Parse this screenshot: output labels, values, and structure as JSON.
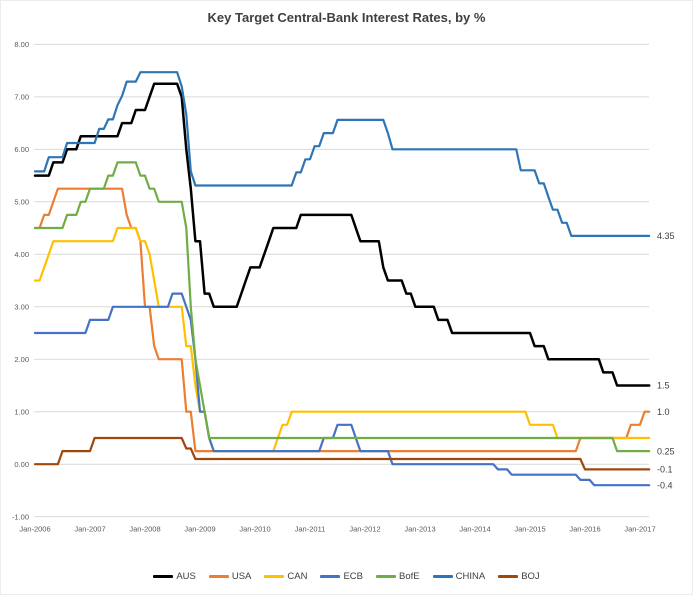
{
  "layout_colors": {
    "background": "#FFFFFF",
    "gridline": "#D9D9D9",
    "tick_text": "#595959",
    "title_text": "#404040",
    "data_label_text": "#404040",
    "legend_text": "#404040"
  },
  "chart_data": {
    "type": "line",
    "title": "Key Target Central-Bank Interest Rates, by %",
    "xlabel": "",
    "ylabel": "",
    "ylim": [
      -1,
      8
    ],
    "grid": "horizontal",
    "legend_position": "bottom",
    "x_months_range": [
      0,
      134
    ],
    "x_start": "Jan-2006",
    "x_ticks": [
      {
        "label": "Jan-2006",
        "month": 0
      },
      {
        "label": "Jan-2007",
        "month": 12
      },
      {
        "label": "Jan-2008",
        "month": 24
      },
      {
        "label": "Jan-2009",
        "month": 36
      },
      {
        "label": "Jan-2010",
        "month": 48
      },
      {
        "label": "Jan-2011",
        "month": 60
      },
      {
        "label": "Jan-2012",
        "month": 72
      },
      {
        "label": "Jan-2013",
        "month": 84
      },
      {
        "label": "Jan-2014",
        "month": 96
      },
      {
        "label": "Jan-2015",
        "month": 108
      },
      {
        "label": "Jan-2016",
        "month": 120
      },
      {
        "label": "Jan-2017",
        "month": 132
      }
    ],
    "y_ticks": [
      {
        "label": "8.00",
        "value": 8
      },
      {
        "label": "7.00",
        "value": 7
      },
      {
        "label": "6.00",
        "value": 6
      },
      {
        "label": "5.00",
        "value": 5
      },
      {
        "label": "4.00",
        "value": 4
      },
      {
        "label": "3.00",
        "value": 3
      },
      {
        "label": "2.00",
        "value": 2
      },
      {
        "label": "1.00",
        "value": 1
      },
      {
        "label": "0.00",
        "value": 0
      },
      {
        "label": "-1.00",
        "value": -1
      }
    ],
    "series": [
      {
        "name": "AUS",
        "color": "#000000",
        "width": 2.5,
        "keyframes": [
          [
            0,
            5.5
          ],
          [
            4,
            5.75
          ],
          [
            7,
            6.0
          ],
          [
            10,
            6.25
          ],
          [
            19,
            6.5
          ],
          [
            22,
            6.75
          ],
          [
            25,
            7.0
          ],
          [
            26,
            7.25
          ],
          [
            32,
            7.0
          ],
          [
            33,
            6.0
          ],
          [
            34,
            5.25
          ],
          [
            35,
            4.25
          ],
          [
            37,
            3.25
          ],
          [
            39,
            3.0
          ],
          [
            45,
            3.25
          ],
          [
            46,
            3.5
          ],
          [
            47,
            3.75
          ],
          [
            50,
            4.0
          ],
          [
            51,
            4.25
          ],
          [
            52,
            4.5
          ],
          [
            58,
            4.75
          ],
          [
            70,
            4.5
          ],
          [
            71,
            4.25
          ],
          [
            76,
            3.75
          ],
          [
            77,
            3.5
          ],
          [
            81,
            3.25
          ],
          [
            83,
            3.0
          ],
          [
            88,
            2.75
          ],
          [
            91,
            2.5
          ],
          [
            109,
            2.25
          ],
          [
            112,
            2.0
          ],
          [
            124,
            1.75
          ],
          [
            127,
            1.5
          ]
        ]
      },
      {
        "name": "USA",
        "color": "#ED7D31",
        "width": 2.2,
        "keyframes": [
          [
            0,
            4.5
          ],
          [
            2,
            4.75
          ],
          [
            4,
            5.0
          ],
          [
            5,
            5.25
          ],
          [
            20,
            4.75
          ],
          [
            21,
            4.5
          ],
          [
            23,
            4.25
          ],
          [
            24,
            3.0
          ],
          [
            26,
            2.25
          ],
          [
            27,
            2.0
          ],
          [
            33,
            1.0
          ],
          [
            35,
            0.25
          ],
          [
            119,
            0.5
          ],
          [
            130,
            0.75
          ],
          [
            133,
            1.0
          ]
        ]
      },
      {
        "name": "CAN",
        "color": "#FFC000",
        "width": 2.2,
        "keyframes": [
          [
            0,
            3.5
          ],
          [
            2,
            3.75
          ],
          [
            3,
            4.0
          ],
          [
            4,
            4.25
          ],
          [
            18,
            4.5
          ],
          [
            23,
            4.25
          ],
          [
            25,
            4.0
          ],
          [
            26,
            3.5
          ],
          [
            27,
            3.0
          ],
          [
            33,
            2.25
          ],
          [
            35,
            1.5
          ],
          [
            36,
            1.0
          ],
          [
            38,
            0.5
          ],
          [
            39,
            0.25
          ],
          [
            53,
            0.5
          ],
          [
            54,
            0.75
          ],
          [
            56,
            1.0
          ],
          [
            108,
            0.75
          ],
          [
            114,
            0.5
          ]
        ]
      },
      {
        "name": "ECB",
        "color": "#4472C4",
        "width": 2.2,
        "keyframes": [
          [
            0,
            2.5
          ],
          [
            12,
            2.75
          ],
          [
            17,
            3.0
          ],
          [
            30,
            3.25
          ],
          [
            33,
            3.0
          ],
          [
            34,
            2.75
          ],
          [
            35,
            2.0
          ],
          [
            36,
            1.0
          ],
          [
            38,
            0.5
          ],
          [
            39,
            0.25
          ],
          [
            63,
            0.5
          ],
          [
            66,
            0.75
          ],
          [
            70,
            0.5
          ],
          [
            71,
            0.25
          ],
          [
            78,
            0.0
          ],
          [
            101,
            -0.1
          ],
          [
            104,
            -0.2
          ],
          [
            119,
            -0.3
          ],
          [
            122,
            -0.4
          ]
        ]
      },
      {
        "name": "BofE",
        "color": "#70AD47",
        "width": 2.2,
        "keyframes": [
          [
            0,
            4.5
          ],
          [
            7,
            4.75
          ],
          [
            10,
            5.0
          ],
          [
            12,
            5.25
          ],
          [
            16,
            5.5
          ],
          [
            18,
            5.75
          ],
          [
            23,
            5.5
          ],
          [
            25,
            5.25
          ],
          [
            27,
            5.0
          ],
          [
            33,
            4.5
          ],
          [
            34,
            3.0
          ],
          [
            35,
            2.0
          ],
          [
            36,
            1.5
          ],
          [
            37,
            1.0
          ],
          [
            38,
            0.5
          ],
          [
            127,
            0.25
          ]
        ]
      },
      {
        "name": "CHINA",
        "color": "#2E75B6",
        "width": 2.2,
        "keyframes": [
          [
            0,
            5.58
          ],
          [
            3,
            5.85
          ],
          [
            7,
            6.12
          ],
          [
            14,
            6.39
          ],
          [
            16,
            6.57
          ],
          [
            18,
            6.84
          ],
          [
            19,
            7.02
          ],
          [
            20,
            7.29
          ],
          [
            23,
            7.47
          ],
          [
            32,
            7.2
          ],
          [
            33,
            6.66
          ],
          [
            34,
            5.58
          ],
          [
            35,
            5.31
          ],
          [
            57,
            5.56
          ],
          [
            59,
            5.81
          ],
          [
            61,
            6.06
          ],
          [
            63,
            6.31
          ],
          [
            66,
            6.56
          ],
          [
            77,
            6.31
          ],
          [
            78,
            6.0
          ],
          [
            106,
            5.6
          ],
          [
            110,
            5.35
          ],
          [
            112,
            5.1
          ],
          [
            113,
            4.85
          ],
          [
            115,
            4.6
          ],
          [
            117,
            4.35
          ]
        ]
      },
      {
        "name": "BOJ",
        "color": "#9E480E",
        "width": 2.2,
        "keyframes": [
          [
            0,
            0.0
          ],
          [
            6,
            0.25
          ],
          [
            13,
            0.5
          ],
          [
            33,
            0.3
          ],
          [
            35,
            0.1
          ],
          [
            120,
            -0.1
          ]
        ]
      }
    ],
    "end_labels": [
      {
        "text": "4.35",
        "value": 4.35
      },
      {
        "text": "1.5",
        "value": 1.5
      },
      {
        "text": "1.0",
        "value": 1.0
      },
      {
        "text": "0.25",
        "value": 0.25
      },
      {
        "text": "-0.1",
        "value": -0.1
      },
      {
        "text": "-0.4",
        "value": -0.4
      }
    ],
    "legend": [
      "AUS",
      "USA",
      "CAN",
      "ECB",
      "BofE",
      "CHINA",
      "BOJ"
    ]
  }
}
